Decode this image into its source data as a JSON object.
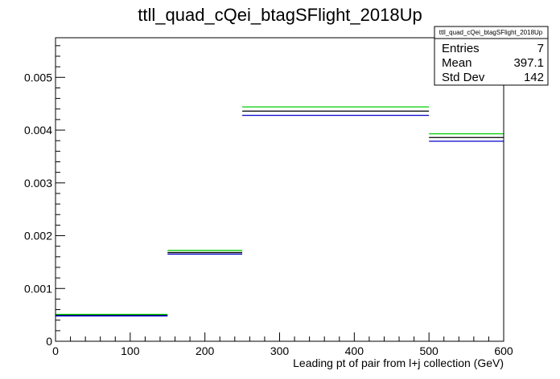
{
  "chart_data": {
    "type": "bar",
    "title": "ttll_quad_cQei_btagSFlight_2018Up",
    "xlabel": "Leading pt of pair from l+j collection (GeV)",
    "ylabel": "",
    "xlim": [
      0,
      600
    ],
    "ylim": [
      0,
      0.00575
    ],
    "x_ticks": [
      0,
      100,
      200,
      300,
      400,
      500,
      600
    ],
    "x_tick_labels": [
      "0",
      "100",
      "200",
      "300",
      "400",
      "500",
      "600"
    ],
    "y_ticks": [
      0,
      0.001,
      0.002,
      0.003,
      0.004,
      0.005
    ],
    "y_tick_labels": [
      "0",
      "0.001",
      "0.002",
      "0.003",
      "0.004",
      "0.005"
    ],
    "bin_edges": [
      0,
      150,
      250,
      500,
      600
    ],
    "series": [
      {
        "color": "#00cc00",
        "values": [
          0.00051,
          0.00172,
          0.00444,
          0.00393
        ]
      },
      {
        "color": "#000000",
        "values": [
          0.00049,
          0.00168,
          0.00436,
          0.00386
        ]
      },
      {
        "color": "#0000cc",
        "values": [
          0.00048,
          0.00165,
          0.00428,
          0.00379
        ]
      }
    ],
    "stats_box": {
      "title": "ttll_quad_cQei_btagSFlight_2018Up",
      "rows": [
        {
          "label": "Entries",
          "value": "7"
        },
        {
          "label": "Mean",
          "value": "397.1"
        },
        {
          "label": "Std Dev",
          "value": "142"
        }
      ]
    },
    "grid": false,
    "legend": "none"
  }
}
